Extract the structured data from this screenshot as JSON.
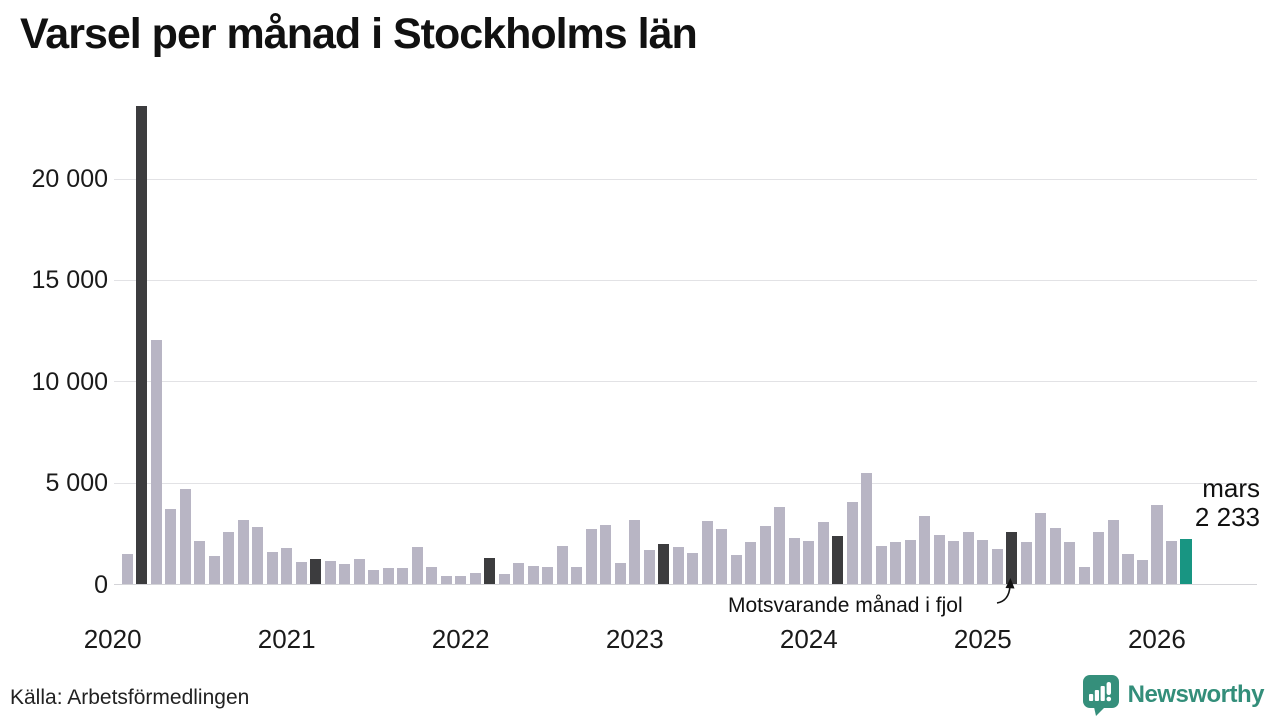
{
  "title": "Varsel per månad i Stockholms län",
  "source": "Källa: Arbetsförmedlingen",
  "branding": {
    "name": "Newsworthy",
    "color": "#338e7a"
  },
  "annotation": {
    "text": "Motsvarande månad i fjol",
    "points_to": "2025-03"
  },
  "highlight": {
    "month": "mars",
    "value": "2 233"
  },
  "colors": {
    "bar": "#b8b5c4",
    "bar_dark": "#3c3c3e",
    "bar_highlight": "#189582",
    "grid": "#e2e2e5",
    "grid_zero": "#d4d4d8",
    "text": "#1a1a1a"
  },
  "chart_data": {
    "type": "bar",
    "title": "Varsel per månad i Stockholms län",
    "xlabel": "",
    "ylabel": "",
    "ylim": [
      0,
      24000
    ],
    "grid": "horizontal",
    "legend": "none",
    "yticks": [
      {
        "label": "0",
        "value": 0
      },
      {
        "label": "5 000",
        "value": 5000
      },
      {
        "label": "10 000",
        "value": 10000
      },
      {
        "label": "15 000",
        "value": 15000
      },
      {
        "label": "20 000",
        "value": 20000
      }
    ],
    "year_labels": [
      "2020",
      "2021",
      "2022",
      "2023",
      "2024",
      "2025",
      "2026"
    ],
    "bars": [
      {
        "month": "2020-02",
        "value": 1500,
        "kind": "normal"
      },
      {
        "month": "2020-03",
        "value": 23600,
        "kind": "march_prior"
      },
      {
        "month": "2020-04",
        "value": 12050,
        "kind": "normal"
      },
      {
        "month": "2020-05",
        "value": 3700,
        "kind": "normal"
      },
      {
        "month": "2020-06",
        "value": 4730,
        "kind": "normal"
      },
      {
        "month": "2020-07",
        "value": 2150,
        "kind": "normal"
      },
      {
        "month": "2020-08",
        "value": 1400,
        "kind": "normal"
      },
      {
        "month": "2020-09",
        "value": 2600,
        "kind": "normal"
      },
      {
        "month": "2020-10",
        "value": 3200,
        "kind": "normal"
      },
      {
        "month": "2020-11",
        "value": 2840,
        "kind": "normal"
      },
      {
        "month": "2020-12",
        "value": 1580,
        "kind": "normal"
      },
      {
        "month": "2021-01",
        "value": 1790,
        "kind": "normal"
      },
      {
        "month": "2021-02",
        "value": 1090,
        "kind": "normal"
      },
      {
        "month": "2021-03",
        "value": 1280,
        "kind": "march_prior"
      },
      {
        "month": "2021-04",
        "value": 1175,
        "kind": "normal"
      },
      {
        "month": "2021-05",
        "value": 1010,
        "kind": "normal"
      },
      {
        "month": "2021-06",
        "value": 1260,
        "kind": "normal"
      },
      {
        "month": "2021-07",
        "value": 720,
        "kind": "normal"
      },
      {
        "month": "2021-08",
        "value": 815,
        "kind": "normal"
      },
      {
        "month": "2021-09",
        "value": 800,
        "kind": "normal"
      },
      {
        "month": "2021-10",
        "value": 1825,
        "kind": "normal"
      },
      {
        "month": "2021-11",
        "value": 845,
        "kind": "normal"
      },
      {
        "month": "2021-12",
        "value": 405,
        "kind": "normal"
      },
      {
        "month": "2022-01",
        "value": 425,
        "kind": "normal"
      },
      {
        "month": "2022-02",
        "value": 555,
        "kind": "normal"
      },
      {
        "month": "2022-03",
        "value": 1290,
        "kind": "march_prior"
      },
      {
        "month": "2022-04",
        "value": 540,
        "kind": "normal"
      },
      {
        "month": "2022-05",
        "value": 1050,
        "kind": "normal"
      },
      {
        "month": "2022-06",
        "value": 930,
        "kind": "normal"
      },
      {
        "month": "2022-07",
        "value": 845,
        "kind": "normal"
      },
      {
        "month": "2022-08",
        "value": 1910,
        "kind": "normal"
      },
      {
        "month": "2022-09",
        "value": 880,
        "kind": "normal"
      },
      {
        "month": "2022-10",
        "value": 2720,
        "kind": "normal"
      },
      {
        "month": "2022-11",
        "value": 2930,
        "kind": "normal"
      },
      {
        "month": "2022-12",
        "value": 1060,
        "kind": "normal"
      },
      {
        "month": "2023-01",
        "value": 3160,
        "kind": "normal"
      },
      {
        "month": "2023-02",
        "value": 1700,
        "kind": "normal"
      },
      {
        "month": "2023-03",
        "value": 1990,
        "kind": "march_prior"
      },
      {
        "month": "2023-04",
        "value": 1825,
        "kind": "normal"
      },
      {
        "month": "2023-05",
        "value": 1530,
        "kind": "normal"
      },
      {
        "month": "2023-06",
        "value": 3130,
        "kind": "normal"
      },
      {
        "month": "2023-07",
        "value": 2720,
        "kind": "normal"
      },
      {
        "month": "2023-08",
        "value": 1470,
        "kind": "normal"
      },
      {
        "month": "2023-09",
        "value": 2120,
        "kind": "normal"
      },
      {
        "month": "2023-10",
        "value": 2880,
        "kind": "normal"
      },
      {
        "month": "2023-11",
        "value": 3810,
        "kind": "normal"
      },
      {
        "month": "2023-12",
        "value": 2310,
        "kind": "normal"
      },
      {
        "month": "2024-01",
        "value": 2150,
        "kind": "normal"
      },
      {
        "month": "2024-02",
        "value": 3080,
        "kind": "normal"
      },
      {
        "month": "2024-03",
        "value": 2400,
        "kind": "march_prior"
      },
      {
        "month": "2024-04",
        "value": 4060,
        "kind": "normal"
      },
      {
        "month": "2024-05",
        "value": 5500,
        "kind": "normal"
      },
      {
        "month": "2024-06",
        "value": 1880,
        "kind": "normal"
      },
      {
        "month": "2024-07",
        "value": 2100,
        "kind": "normal"
      },
      {
        "month": "2024-08",
        "value": 2200,
        "kind": "normal"
      },
      {
        "month": "2024-09",
        "value": 3400,
        "kind": "normal"
      },
      {
        "month": "2024-10",
        "value": 2440,
        "kind": "normal"
      },
      {
        "month": "2024-11",
        "value": 2150,
        "kind": "normal"
      },
      {
        "month": "2024-12",
        "value": 2600,
        "kind": "normal"
      },
      {
        "month": "2025-01",
        "value": 2200,
        "kind": "normal"
      },
      {
        "month": "2025-02",
        "value": 1740,
        "kind": "normal"
      },
      {
        "month": "2025-03",
        "value": 2590,
        "kind": "march_prior"
      },
      {
        "month": "2025-04",
        "value": 2100,
        "kind": "normal"
      },
      {
        "month": "2025-05",
        "value": 3530,
        "kind": "normal"
      },
      {
        "month": "2025-06",
        "value": 2770,
        "kind": "normal"
      },
      {
        "month": "2025-07",
        "value": 2080,
        "kind": "normal"
      },
      {
        "month": "2025-08",
        "value": 870,
        "kind": "normal"
      },
      {
        "month": "2025-09",
        "value": 2600,
        "kind": "normal"
      },
      {
        "month": "2025-10",
        "value": 3200,
        "kind": "normal"
      },
      {
        "month": "2025-11",
        "value": 1520,
        "kind": "normal"
      },
      {
        "month": "2025-12",
        "value": 1200,
        "kind": "normal"
      },
      {
        "month": "2026-01",
        "value": 3920,
        "kind": "normal"
      },
      {
        "month": "2026-02",
        "value": 2170,
        "kind": "normal"
      },
      {
        "month": "2026-03",
        "value": 2233,
        "kind": "latest"
      }
    ]
  }
}
